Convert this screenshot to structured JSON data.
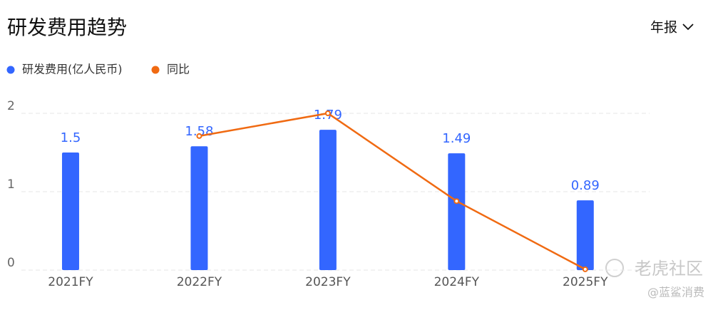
{
  "header": {
    "title": "研发费用趋势",
    "period": "年报"
  },
  "watermark": {
    "brand": "老虎社区",
    "author": "@蓝鲨消费"
  },
  "chart_data": {
    "type": "bar",
    "categories": [
      "2021FY",
      "2022FY",
      "2023FY",
      "2024FY",
      "2025FY"
    ],
    "series": [
      {
        "name": "研发费用(亿人民币)",
        "type": "bar",
        "color": "#3366ff",
        "values": [
          1.5,
          1.58,
          1.79,
          1.49,
          0.89
        ]
      },
      {
        "name": "同比",
        "type": "line",
        "color": "#f06a12",
        "values": [
          null,
          1.71,
          2.0,
          0.88,
          0.01
        ]
      }
    ],
    "ylim": [
      0,
      2
    ],
    "yticks": [
      0,
      1,
      2
    ],
    "grid": true
  }
}
